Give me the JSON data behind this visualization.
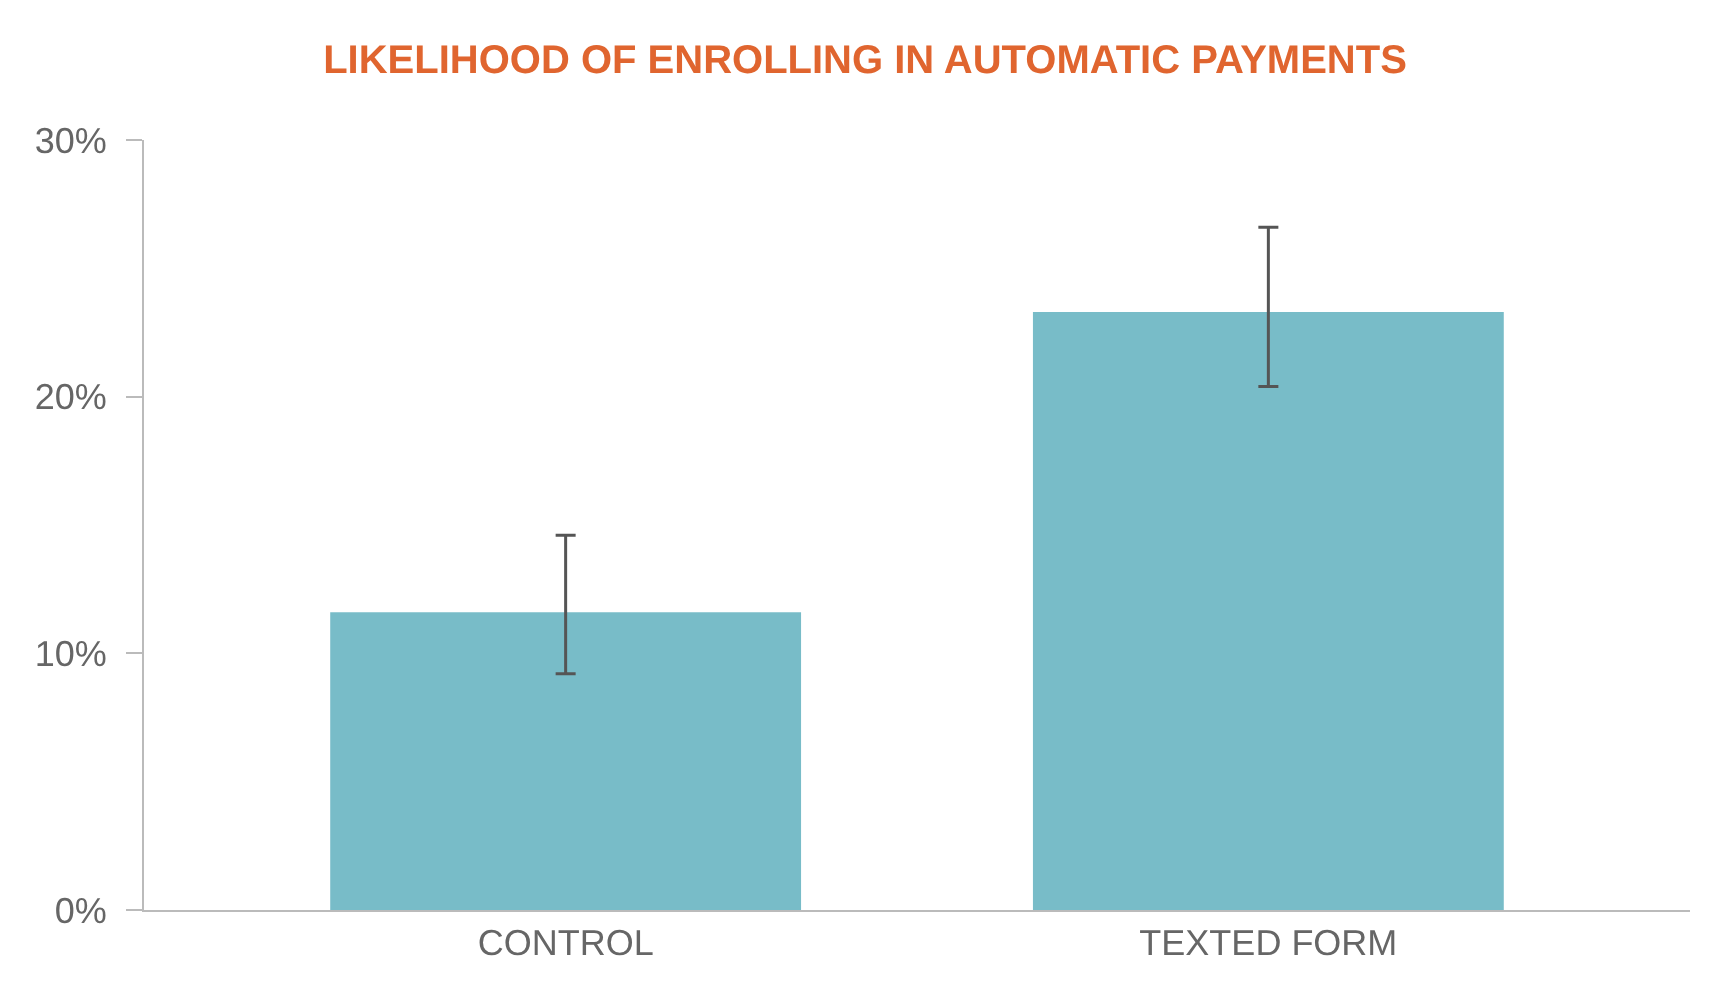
{
  "chart_data": {
    "type": "bar",
    "title": "LIKELIHOOD OF ENROLLING IN AUTOMATIC PAYMENTS",
    "categories": [
      "CONTROL",
      "TEXTED FORM"
    ],
    "values": [
      11.6,
      23.3
    ],
    "errors": [
      [
        9.2,
        14.6
      ],
      [
        20.4,
        26.6
      ]
    ],
    "color": "#78bcc8",
    "ylim": [
      0,
      30
    ],
    "yticks": [
      {
        "value": 0,
        "label": "0%"
      },
      {
        "value": 10,
        "label": "10%"
      },
      {
        "value": 20,
        "label": "20%"
      },
      {
        "value": 30,
        "label": "30%"
      }
    ]
  }
}
